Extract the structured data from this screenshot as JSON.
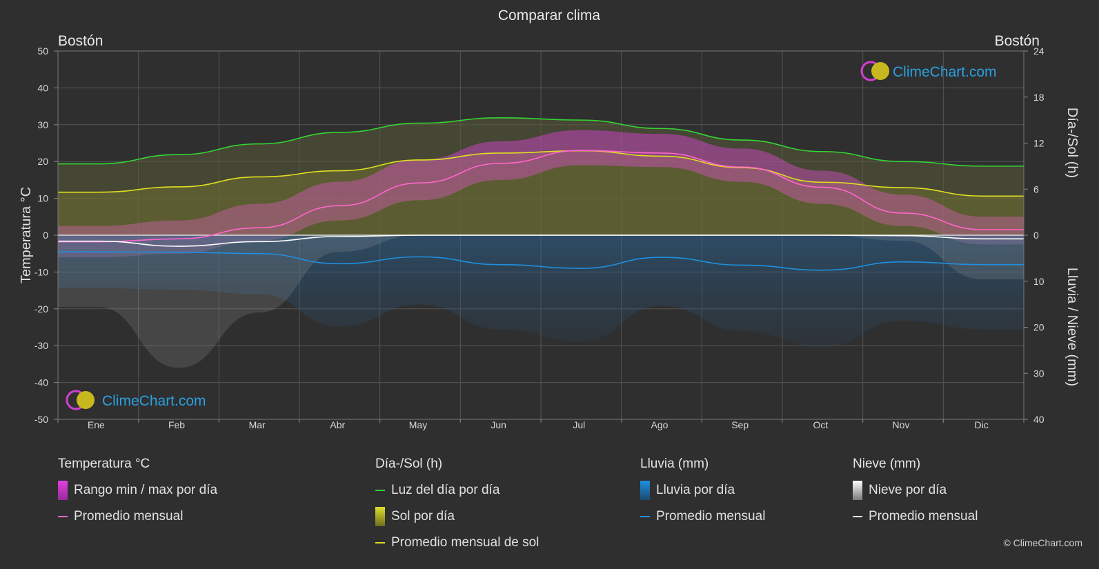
{
  "chart_data": {
    "type": "line",
    "title": "Comparar clima",
    "location_left": "Bostón",
    "location_right": "Bostón",
    "watermark": "ClimeChart.com",
    "copyright": "© ClimeChart.com",
    "months": [
      "Ene",
      "Feb",
      "Mar",
      "Abr",
      "May",
      "Jun",
      "Jul",
      "Ago",
      "Sep",
      "Oct",
      "Nov",
      "Dic"
    ],
    "axis_left": {
      "label": "Temperatura °C",
      "min": -50,
      "max": 50,
      "ticks": [
        50,
        40,
        30,
        20,
        10,
        0,
        -10,
        -20,
        -30,
        -40,
        -50
      ]
    },
    "axis_right_top": {
      "label": "Día-/Sol (h)",
      "min": 0,
      "max": 24,
      "ticks": [
        24,
        18,
        12,
        6,
        0
      ]
    },
    "axis_right_bottom": {
      "label": "Lluvia / Nieve (mm)",
      "min": 0,
      "max": 40,
      "ticks": [
        0,
        10,
        20,
        30,
        40
      ]
    },
    "series": [
      {
        "name": "Luz del día por día",
        "axis": "sun",
        "color": "#33d633",
        "values": [
          9.3,
          10.5,
          11.9,
          13.4,
          14.6,
          15.3,
          15.0,
          13.9,
          12.4,
          10.9,
          9.6,
          9.0
        ]
      },
      {
        "name": "Promedio mensual de sol",
        "axis": "sun",
        "color": "#e0e020",
        "values": [
          5.6,
          6.3,
          7.6,
          8.4,
          9.8,
          10.7,
          11.0,
          10.3,
          8.8,
          6.9,
          6.2,
          5.1
        ]
      },
      {
        "name": "Temperatura promedio mensual",
        "axis": "temp",
        "color": "#ff66cc",
        "values": [
          -1.8,
          -1.0,
          2.0,
          8.0,
          14.2,
          19.5,
          23.0,
          22.3,
          18.5,
          13.0,
          6.0,
          1.5
        ]
      },
      {
        "name": "Lluvia promedio mensual",
        "axis": "rain",
        "color": "#1f8fe0",
        "values": [
          3.6,
          3.7,
          4.0,
          6.2,
          4.7,
          6.4,
          7.2,
          4.8,
          6.5,
          7.6,
          5.8,
          6.4
        ]
      },
      {
        "name": "Nieve promedio mensual",
        "axis": "rain",
        "color": "#ffffff",
        "values": [
          1.3,
          2.4,
          1.4,
          0.3,
          0.0,
          0.0,
          0.0,
          0.0,
          0.0,
          0.0,
          0.1,
          0.8
        ]
      }
    ],
    "temp_range": {
      "max": [
        2.5,
        4.0,
        8.5,
        14.5,
        20.5,
        25.5,
        28.5,
        27.5,
        23.5,
        17.5,
        11.0,
        5.0
      ],
      "min": [
        -6.0,
        -5.0,
        -1.5,
        4.0,
        9.5,
        15.0,
        19.0,
        18.5,
        14.5,
        8.5,
        2.5,
        -2.5
      ]
    },
    "grid": true
  },
  "legend": {
    "temp": {
      "title": "Temperatura °C",
      "range": "Rango min / max por día",
      "avg": "Promedio mensual",
      "range_color": "#e040e0",
      "avg_color": "#ff66cc"
    },
    "sun": {
      "title": "Día-/Sol (h)",
      "daylight": "Luz del día por día",
      "sun": "Sol por día",
      "avg": "Promedio mensual de sol",
      "daylight_color": "#33d633",
      "sun_color": "#c8c830",
      "avg_color": "#e0e020"
    },
    "rain": {
      "title": "Lluvia (mm)",
      "daily": "Lluvia por día",
      "avg": "Promedio mensual",
      "color": "#1f8fe0"
    },
    "snow": {
      "title": "Nieve (mm)",
      "daily": "Nieve por día",
      "avg": "Promedio mensual",
      "color": "#ffffff"
    }
  }
}
